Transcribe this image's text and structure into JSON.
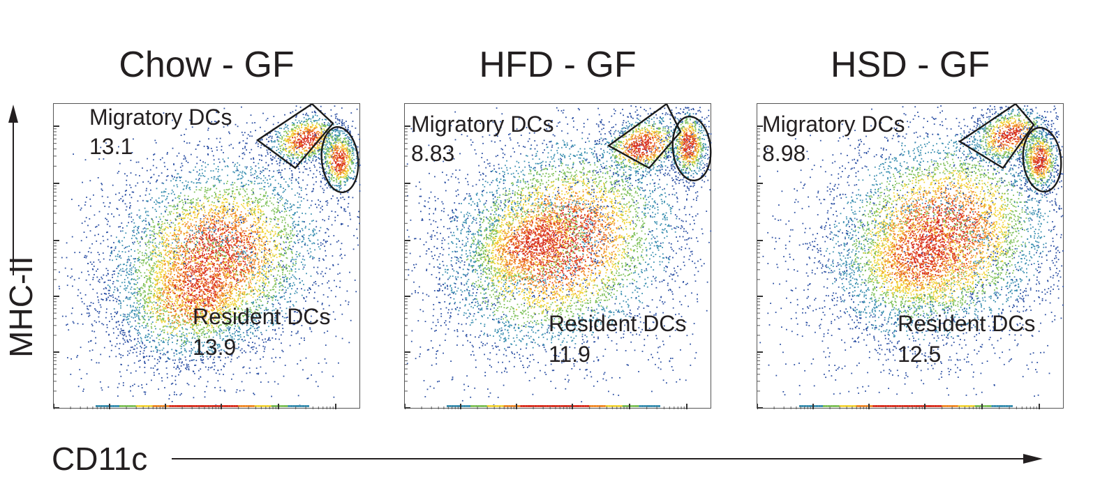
{
  "chart_data": {
    "type": "scatter",
    "xlabel": "CD11c",
    "ylabel": "MHC-II",
    "x_scale": "log",
    "y_scale": "log",
    "grid": false,
    "panels": [
      {
        "title": "Chow - GF",
        "gates": [
          {
            "name": "Migratory DCs",
            "value": "13.1"
          },
          {
            "name": "Resident DCs",
            "value": "13.9"
          }
        ]
      },
      {
        "title": "HFD - GF",
        "gates": [
          {
            "name": "Migratory DCs",
            "value": "8.83"
          },
          {
            "name": "Resident DCs",
            "value": "11.9"
          }
        ]
      },
      {
        "title": "HSD - GF",
        "gates": [
          {
            "name": "Migratory DCs",
            "value": "8.98"
          },
          {
            "name": "Resident DCs",
            "value": "12.5"
          }
        ]
      }
    ],
    "colors": {
      "density_low": "#2b4fa3",
      "density_mid1": "#3a8fb0",
      "density_mid2": "#7fc15a",
      "density_high1": "#f2d43a",
      "density_high2": "#f08a2a",
      "density_peak": "#d83020",
      "gate_line": "#1a1a1a"
    }
  }
}
